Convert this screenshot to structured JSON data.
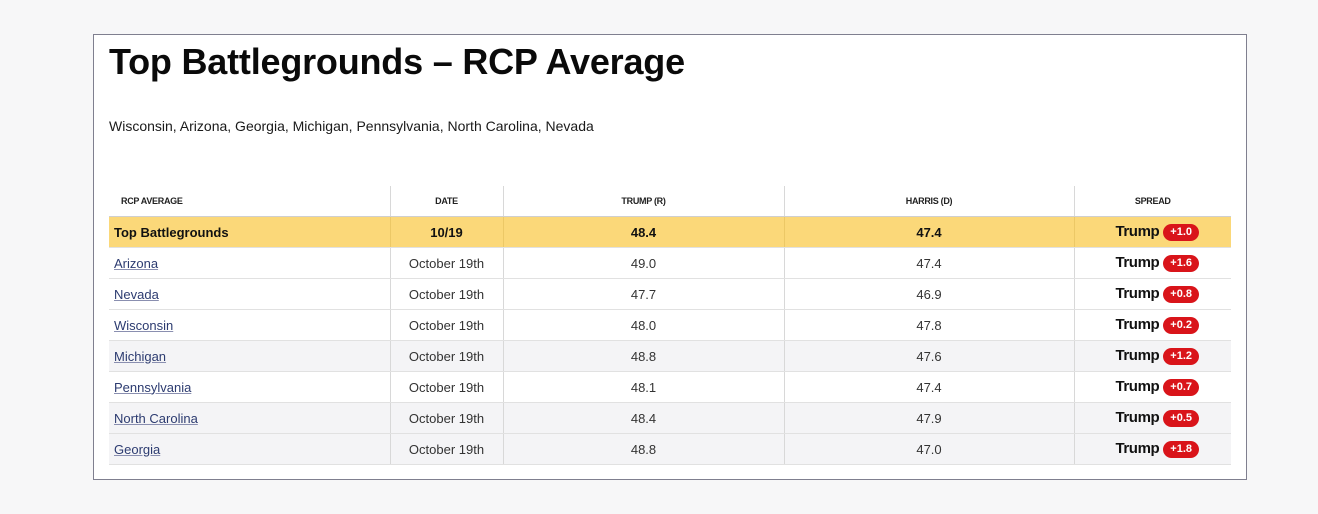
{
  "page": {
    "title": "Top Battlegrounds – RCP Average",
    "subtitle": "Wisconsin, Arizona, Georgia, Michigan, Pennsylvania, North Carolina, Nevada"
  },
  "table": {
    "headers": {
      "name": "RCP AVERAGE",
      "date": "DATE",
      "trump": "TRUMP (R)",
      "harris": "HARRIS (D)",
      "spread": "SPREAD"
    },
    "summary": {
      "name": "Top Battlegrounds",
      "date": "10/19",
      "trump": "48.4",
      "harris": "47.4",
      "spread_name": "Trump",
      "spread_value": "+1.0"
    },
    "rows": [
      {
        "name": "Arizona",
        "date": "October 19th",
        "trump": "49.0",
        "harris": "47.4",
        "spread_name": "Trump",
        "spread_value": "+1.6"
      },
      {
        "name": "Nevada",
        "date": "October 19th",
        "trump": "47.7",
        "harris": "46.9",
        "spread_name": "Trump",
        "spread_value": "+0.8"
      },
      {
        "name": "Wisconsin",
        "date": "October 19th",
        "trump": "48.0",
        "harris": "47.8",
        "spread_name": "Trump",
        "spread_value": "+0.2"
      },
      {
        "name": "Michigan",
        "date": "October 19th",
        "trump": "48.8",
        "harris": "47.6",
        "spread_name": "Trump",
        "spread_value": "+1.2"
      },
      {
        "name": "Pennsylvania",
        "date": "October 19th",
        "trump": "48.1",
        "harris": "47.4",
        "spread_name": "Trump",
        "spread_value": "+0.7"
      },
      {
        "name": "North Carolina",
        "date": "October 19th",
        "trump": "48.4",
        "harris": "47.9",
        "spread_name": "Trump",
        "spread_value": "+0.5"
      },
      {
        "name": "Georgia",
        "date": "October 19th",
        "trump": "48.8",
        "harris": "47.0",
        "spread_name": "Trump",
        "spread_value": "+1.8"
      }
    ]
  },
  "colors": {
    "highlight": "#fbd879",
    "badge": "#d9141a",
    "link": "#2c3b70"
  }
}
